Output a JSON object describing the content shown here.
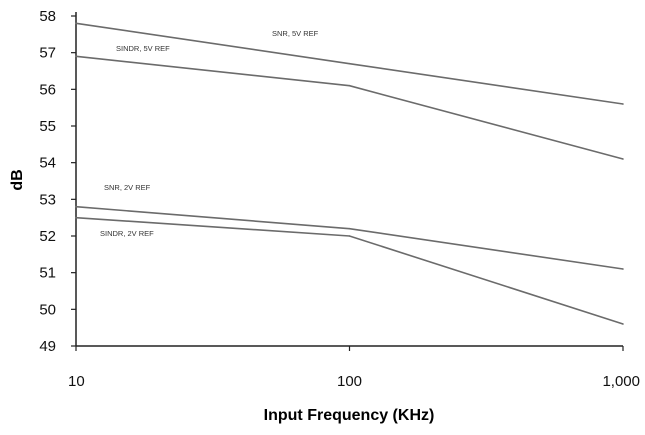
{
  "chart_data": {
    "type": "line",
    "title": "",
    "xlabel": "Input Frequency (KHz)",
    "ylabel": "dB",
    "x_scale": "log",
    "xlim": [
      10,
      1000
    ],
    "ylim": [
      49,
      58
    ],
    "x_ticks": [
      10,
      100,
      1000
    ],
    "x_tick_labels": [
      "10",
      "100",
      "1,000"
    ],
    "y_ticks": [
      49,
      50,
      51,
      52,
      53,
      54,
      55,
      56,
      57,
      58
    ],
    "y_tick_labels": [
      "49",
      "50",
      "51",
      "52",
      "53",
      "54",
      "55",
      "56",
      "57",
      "58"
    ],
    "grid": false,
    "legend": "none",
    "colors": {
      "line": "#6b6b6b",
      "axis": "#222222"
    },
    "series": [
      {
        "name": "SNR, 5V REF",
        "x": [
          10,
          100,
          1000
        ],
        "y": [
          57.8,
          56.7,
          55.6
        ]
      },
      {
        "name": "SINDR, 5V REF",
        "x": [
          10,
          100,
          1000
        ],
        "y": [
          56.9,
          56.1,
          54.1
        ]
      },
      {
        "name": "SNR, 2V REF",
        "x": [
          10,
          100,
          1000
        ],
        "y": [
          52.8,
          52.2,
          51.1
        ]
      },
      {
        "name": "SINDR, 2V REF",
        "x": [
          10,
          100,
          1000
        ],
        "y": [
          52.5,
          52.0,
          49.6
        ]
      }
    ]
  }
}
